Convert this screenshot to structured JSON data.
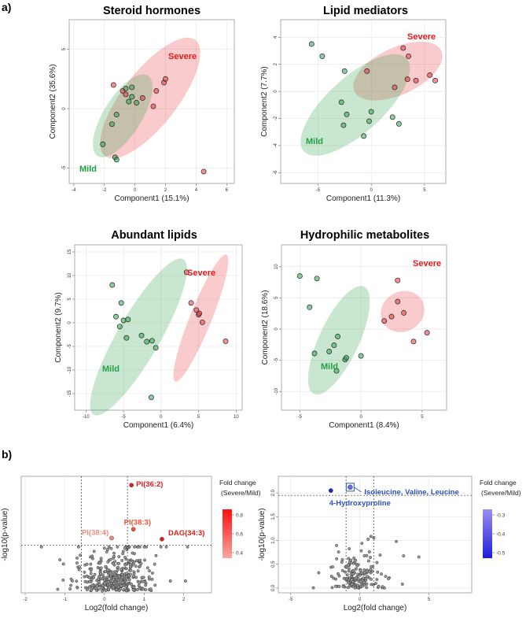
{
  "figure": {
    "panel_a_label": "a)",
    "panel_b_label": "b)"
  },
  "chart_data": [
    {
      "type": "scatter",
      "title": "Steroid hormones",
      "xlabel": "Component1  (15.1%)",
      "ylabel": "Component2  (35.6%)",
      "xlim": [
        -4.3,
        6.5
      ],
      "ylim": [
        -6.3,
        7.5
      ],
      "xticks": [
        -4,
        -2,
        0,
        2,
        4,
        6
      ],
      "yticks": [
        -5,
        0,
        5
      ],
      "groups": [
        {
          "name": "Severe",
          "color": "#e8373a",
          "ellipse": {
            "cx": 1.0,
            "cy": 0.9,
            "rx": 6.2,
            "ry": 2.3,
            "angle": -52
          },
          "points": [
            [
              -1.4,
              2.0
            ],
            [
              -0.8,
              1.5
            ],
            [
              -0.6,
              1.2
            ],
            [
              0.5,
              0.9
            ],
            [
              1.2,
              0.2
            ],
            [
              1.4,
              1.5
            ],
            [
              1.9,
              2.2
            ],
            [
              2.0,
              2.5
            ],
            [
              4.5,
              -5.3
            ]
          ]
        },
        {
          "name": "Mild",
          "color": "#2fa34b",
          "ellipse": {
            "cx": -0.8,
            "cy": -0.6,
            "rx": 4.0,
            "ry": 1.6,
            "angle": -58
          },
          "points": [
            [
              -2.1,
              -3.0
            ],
            [
              -1.5,
              -1.3
            ],
            [
              -1.2,
              -0.5
            ],
            [
              -1.3,
              -4.1
            ],
            [
              -1.2,
              -4.3
            ],
            [
              -0.6,
              1.7
            ],
            [
              -0.4,
              0.6
            ],
            [
              -0.2,
              1.0
            ],
            [
              0.1,
              0.5
            ],
            [
              -0.2,
              1.8
            ]
          ]
        }
      ]
    },
    {
      "type": "scatter",
      "title": "Lipid mediators",
      "xlabel": "Component1  (11.3%)",
      "ylabel": "Component2  (7.7%)",
      "xlim": [
        -8.5,
        7.0
      ],
      "ylim": [
        -6.8,
        5.3
      ],
      "xticks": [
        -5,
        0,
        5
      ],
      "yticks": [
        -6,
        -4,
        -2,
        0,
        2,
        4
      ],
      "groups": [
        {
          "name": "Severe",
          "color": "#e8373a",
          "ellipse": {
            "cx": 2.5,
            "cy": 1.5,
            "rx": 4.5,
            "ry": 2.2,
            "angle": -25
          },
          "points": [
            [
              -0.4,
              1.5
            ],
            [
              2.2,
              0.3
            ],
            [
              3.0,
              3.2
            ],
            [
              3.5,
              2.6
            ],
            [
              3.4,
              0.9
            ],
            [
              4.2,
              0.8
            ],
            [
              5.5,
              1.2
            ],
            [
              6.0,
              0.8
            ]
          ]
        },
        {
          "name": "Mild",
          "color": "#2fa34b",
          "ellipse": {
            "cx": -1.5,
            "cy": -1.0,
            "rx": 6.5,
            "ry": 2.6,
            "angle": -42
          },
          "points": [
            [
              -5.6,
              3.5
            ],
            [
              -4.6,
              2.6
            ],
            [
              -2.5,
              1.5
            ],
            [
              -2.8,
              -0.8
            ],
            [
              -2.3,
              -1.7
            ],
            [
              -2.6,
              -2.5
            ],
            [
              0.0,
              -1.5
            ],
            [
              -0.7,
              -3.3
            ],
            [
              -0.2,
              -2.2
            ],
            [
              2.0,
              -1.9
            ],
            [
              2.6,
              -2.4
            ]
          ]
        }
      ]
    },
    {
      "type": "scatter",
      "title": "Abundant lipids",
      "xlabel": "Component1  (6.4%)",
      "ylabel": "Component2  (9.7%)",
      "xlim": [
        -11.5,
        10.8
      ],
      "ylim": [
        -18.5,
        16.5
      ],
      "xticks": [
        -10,
        -5,
        0,
        5,
        10
      ],
      "yticks": [
        -15,
        -10,
        -5,
        0,
        5,
        10,
        15
      ],
      "groups": [
        {
          "name": "Severe",
          "color": "#e8373a",
          "ellipse": {
            "cx": 5.3,
            "cy": 1.0,
            "rx": 14.5,
            "ry": 2.3,
            "angle": -68
          },
          "points": [
            [
              3.4,
              10.7
            ],
            [
              4.0,
              4.2
            ],
            [
              4.7,
              2.7
            ],
            [
              5.0,
              1.7
            ],
            [
              5.1,
              2.0
            ],
            [
              5.5,
              0.1
            ],
            [
              8.6,
              -3.9
            ]
          ]
        },
        {
          "name": "Mild",
          "color": "#2fa34b",
          "ellipse": {
            "cx": -3.0,
            "cy": -3.0,
            "rx": 19.0,
            "ry": 4.5,
            "angle": -60
          },
          "points": [
            [
              -6.5,
              8.0
            ],
            [
              -6.0,
              1.3
            ],
            [
              -5.3,
              4.2
            ],
            [
              -5.0,
              0.5
            ],
            [
              -4.4,
              0.7
            ],
            [
              -5.5,
              -0.8
            ],
            [
              -4.6,
              -3.2
            ],
            [
              -2.6,
              -2.7
            ],
            [
              -1.9,
              -4.0
            ],
            [
              -1.2,
              -3.8
            ],
            [
              -0.7,
              -5.3
            ],
            [
              -1.3,
              -15.8
            ]
          ]
        }
      ]
    },
    {
      "type": "scatter",
      "title": "Hydrophilic metabolites",
      "xlabel": "Component1  (8.4%)",
      "ylabel": "Component2  (18.6%)",
      "xlim": [
        -6.5,
        7.0
      ],
      "ylim": [
        -13.0,
        13.5
      ],
      "xticks": [
        -5,
        0,
        5
      ],
      "yticks": [
        -10,
        -5,
        0,
        5,
        10
      ],
      "groups": [
        {
          "name": "Severe",
          "color": "#e8373a",
          "ellipse": {
            "cx": 3.4,
            "cy": 2.8,
            "rx": 3.6,
            "ry": 3.2,
            "angle": -30
          },
          "points": [
            [
              1.9,
              1.3
            ],
            [
              2.5,
              2.0
            ],
            [
              3.5,
              2.6
            ],
            [
              3.0,
              4.4
            ],
            [
              3.0,
              7.8
            ],
            [
              4.3,
              -2.0
            ],
            [
              5.4,
              -0.6
            ]
          ]
        },
        {
          "name": "Mild",
          "color": "#2fa34b",
          "ellipse": {
            "cx": -1.8,
            "cy": -1.8,
            "rx": 9.5,
            "ry": 3.2,
            "angle": -65
          },
          "points": [
            [
              -5.0,
              8.5
            ],
            [
              -4.2,
              3.5
            ],
            [
              -3.6,
              8.1
            ],
            [
              -3.8,
              -3.9
            ],
            [
              -2.6,
              -3.6
            ],
            [
              -2.0,
              -6.7
            ],
            [
              -2.2,
              -2.6
            ],
            [
              -1.9,
              -1.2
            ],
            [
              -1.3,
              -4.9
            ],
            [
              -1.2,
              -4.6
            ],
            [
              0.0,
              -4.3
            ]
          ]
        }
      ]
    },
    {
      "type": "scatter",
      "title": "",
      "xlabel": "Log2(fold change)",
      "ylabel": "-log10(p-value)",
      "xlim": [
        -2.1,
        2.7
      ],
      "ylim": [
        -0.05,
        3.25
      ],
      "xticks": [
        -2,
        -1,
        0,
        1,
        2
      ],
      "xtick_labels": [
        "-2",
        "-1",
        "0",
        "1",
        "2"
      ],
      "yticks": [],
      "thresholds": {
        "x": [
          -0.58,
          0.58
        ],
        "y": 1.3
      },
      "legend": {
        "title1": "Fold change",
        "title2": "(Severe/Mild)",
        "ticks": [
          "0.8",
          "0.6",
          "0.4"
        ],
        "low_color": "#f6a7a0",
        "high_color": "#ff1010"
      },
      "highlights": [
        {
          "label": "PI(36:2)",
          "x": 0.68,
          "y": 3.0,
          "color": "#e11d1d"
        },
        {
          "label": "PI(38:3)",
          "x": 0.73,
          "y": 1.75,
          "color": "#e8533e"
        },
        {
          "label": "PI(38:4)",
          "x": 0.18,
          "y": 1.5,
          "color": "#f08a7d"
        },
        {
          "label": "DAG(34:3)",
          "x": 1.45,
          "y": 1.47,
          "color": "#e11d1d"
        }
      ],
      "points_seed": 11,
      "points_count": 400
    },
    {
      "type": "scatter",
      "title": "",
      "xlabel": "Log2(fold change)",
      "ylabel": "-log10(p-value)",
      "xlim": [
        -5.9,
        8.1
      ],
      "ylim": [
        -0.1,
        2.35
      ],
      "xticks": [
        -5,
        0,
        5
      ],
      "xtick_labels": [
        "-5",
        "0",
        "5"
      ],
      "yticks": [
        0.0,
        0.5,
        1.0,
        1.5,
        2.0
      ],
      "ytick_labels": [
        "0.0",
        "0.5",
        "1.0",
        "1.5",
        "2.0"
      ],
      "thresholds": {
        "x": [
          -1.0,
          1.0
        ],
        "y": 1.95
      },
      "legend": {
        "title1": "Fold change",
        "title2": "(Severe/Mild)",
        "ticks": [
          "-0.3",
          "-0.4",
          "-0.5"
        ],
        "low_color": "#9a8ff0",
        "high_color": "#1d1dd8"
      },
      "highlights": [
        {
          "label": "Isoleucine, Valine, Leucine",
          "x": -0.7,
          "y": 2.12,
          "color": "#2d52c6"
        },
        {
          "label": "4-Hydroxyproline",
          "x": -2.1,
          "y": 2.05,
          "color": "#1d2ec8"
        }
      ],
      "points_seed": 23,
      "points_count": 190
    }
  ]
}
